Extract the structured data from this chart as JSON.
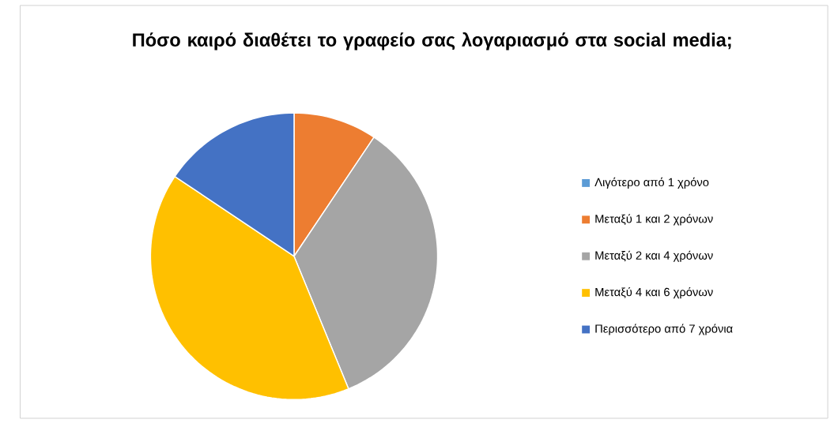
{
  "chart_data": {
    "type": "pie",
    "title": "Πόσο καιρό διαθέτει το γραφείο σας λογαριασμό στα social media;",
    "categories": [
      "Λιγότερο από 1 χρόνο",
      "Μεταξύ 1 και 2 χρόνων",
      "Μεταξύ 2 και 4 χρόνων",
      "Μεταξύ 4 και 6 χρόνων",
      "Περισσότερο από 7 χρόνια"
    ],
    "values": [
      0,
      9.4,
      34.4,
      40.6,
      15.6
    ],
    "colors": [
      "#5b9bd5",
      "#ed7d31",
      "#a5a5a5",
      "#ffc000",
      "#4472c4"
    ],
    "legend": "right"
  }
}
